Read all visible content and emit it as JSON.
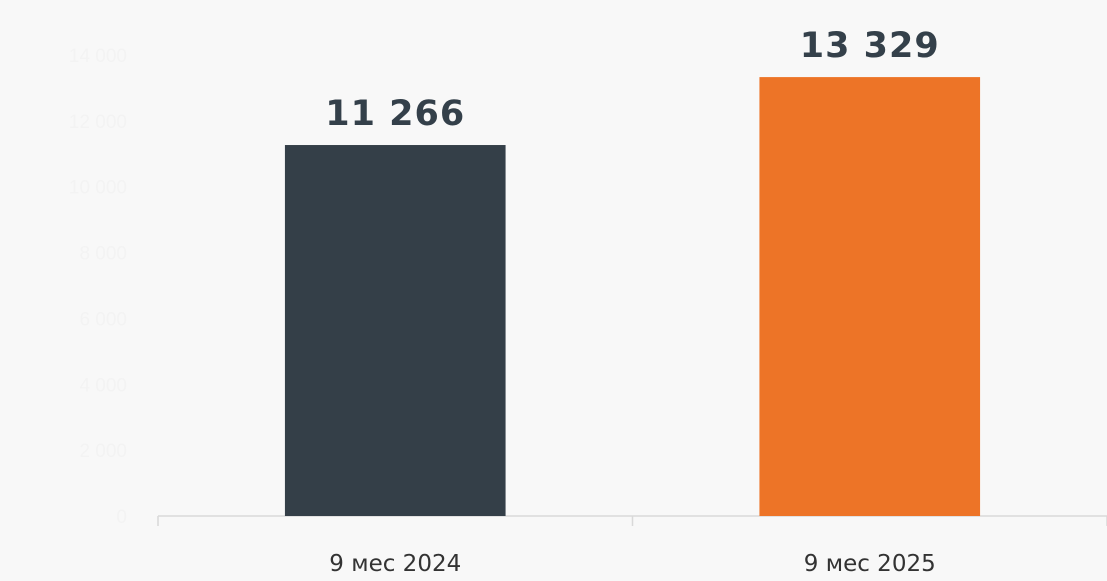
{
  "chart_data": {
    "type": "bar",
    "title": "",
    "xlabel": "",
    "ylabel": "",
    "categories": [
      "9 мес 2024",
      "9 мес 2025"
    ],
    "values": [
      11266,
      13329
    ],
    "value_labels": [
      "11 266",
      "13 329"
    ],
    "bar_colors": [
      "#343f48",
      "#ed7427"
    ],
    "ylim": [
      0,
      14000
    ],
    "yticks": [
      0,
      2000,
      4000,
      6000,
      8000,
      10000,
      12000,
      14000
    ],
    "ytick_labels": [
      "0",
      "2 000",
      "4 000",
      "6 000",
      "8 000",
      "10 000",
      "12 000",
      "14 000"
    ],
    "grid": false,
    "legend": "none"
  },
  "colors": {
    "background": "#f8f8f8",
    "axis": "#d9d9d9",
    "tick_text": "#333333",
    "ytick_text": "#f3f3f3",
    "label_text": "#34404a"
  }
}
